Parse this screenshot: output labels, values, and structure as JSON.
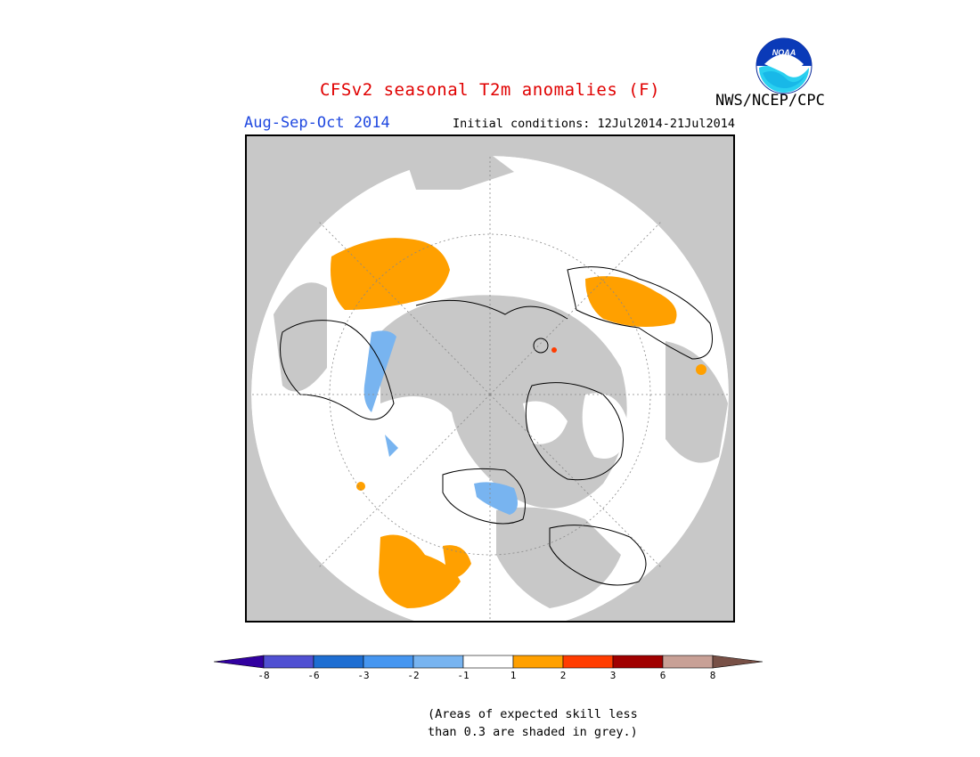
{
  "header": {
    "title": "CFSv2 seasonal T2m anomalies (F)",
    "season": "Aug-Sep-Oct 2014",
    "initial_conditions": "Initial conditions: 12Jul2014-21Jul2014",
    "agency": "NWS/NCEP/CPC",
    "logo_text": "NOAA"
  },
  "map": {
    "projection": "north polar stereographic",
    "colors": {
      "no_skill_grey": "#c8c8c8",
      "near_normal": "#ffffff",
      "warm_1_2": "#ffa000",
      "warm_2_3": "#ff3c00",
      "cool_m1_m2": "#78b4f0",
      "cool_m2_m3": "#4696f0",
      "coastline": "#000000"
    }
  },
  "colorbar": {
    "ticks": [
      "-8",
      "-6",
      "-3",
      "-2",
      "-1",
      "1",
      "2",
      "3",
      "6",
      "8"
    ],
    "colors": [
      "#3200a0",
      "#5050d2",
      "#1e6ed2",
      "#4696f0",
      "#78b4f0",
      "#ffffff",
      "#ffa000",
      "#ff3c00",
      "#a00000",
      "#c8a096",
      "#785046"
    ]
  },
  "footnote": {
    "line1": "(Areas of expected skill less",
    "line2": "than 0.3 are shaded in grey.)"
  }
}
